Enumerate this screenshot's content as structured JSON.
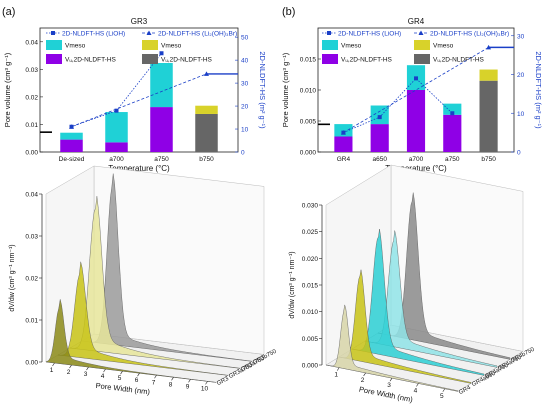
{
  "panel_labels": [
    "(a)",
    "(b)"
  ],
  "chart_data": [
    {
      "type": "bar",
      "title": "GR3",
      "xlabel": "Temperature (°C)",
      "ylabel": "Pore volume (cm³ g⁻¹)",
      "y2label": "2D-NLDFT-HS (m² g⁻¹)",
      "categories": [
        "De-sized",
        "a700",
        "a750",
        "b750"
      ],
      "ylim": [
        0,
        0.045
      ],
      "yticks": [
        "0.00",
        "0.01",
        "0.02",
        "0.03",
        "0.04"
      ],
      "y2lim": [
        0,
        54
      ],
      "y2ticks": [
        "0",
        "10",
        "20",
        "30",
        "40",
        "50"
      ],
      "series": [
        {
          "name": "Vᵤ,2D-NLDFT-HS",
          "kind": "stack-base",
          "color": "#8f00e6",
          "values": [
            0.0045,
            0.0035,
            0.0163,
            null
          ]
        },
        {
          "name": "Vmeso",
          "kind": "stack-top",
          "color": "#1fd1d6",
          "values": [
            0.0025,
            0.011,
            0.016,
            null
          ]
        },
        {
          "name": "Vᵤ,2D-NLDFT-HS",
          "kind": "stack-base",
          "color": "#666666",
          "values": [
            null,
            null,
            null,
            0.0138
          ]
        },
        {
          "name": "Vmeso",
          "kind": "stack-top",
          "color": "#d8d22a",
          "values": [
            null,
            null,
            null,
            0.003
          ]
        }
      ],
      "lines": [
        {
          "name": "2D-NLDFT-HS (LiOH)",
          "style": "dotted-square",
          "color": "#1a3fc7",
          "values": [
            11,
            18,
            43,
            null
          ]
        },
        {
          "name": "2D-NLDFT-HS (Li₂(OH)₃Br)",
          "style": "dashed-triangle",
          "color": "#1a3fc7",
          "values": [
            11,
            null,
            null,
            34
          ]
        }
      ],
      "legend": {
        "vmeso_cyan": "Vmeso",
        "vmeso_yellow": "Vmeso",
        "vu_purple": "Vᵤ,2D-NLDFT-HS",
        "vu_grey": "Vᵤ,2D-NLDFT-HS"
      },
      "legend_lines": [
        "2D-NLDFT-HS (LiOH)",
        "2D-NLDFT-HS (Li₂(OH)₃Br)"
      ]
    },
    {
      "type": "bar",
      "title": "GR4",
      "xlabel": "Temperature (°C)",
      "ylabel": "Pore volume (cm³ g⁻¹)",
      "y2label": "2D-NLDFT-HS (m² g⁻¹)",
      "categories": [
        "GR4",
        "a650",
        "a700",
        "a750",
        "b750"
      ],
      "ylim": [
        0,
        0.02
      ],
      "yticks": [
        "0.000",
        "0.005",
        "0.010",
        "0.015"
      ],
      "y2lim": [
        0,
        32
      ],
      "y2ticks": [
        "0",
        "10",
        "20",
        "30"
      ],
      "series": [
        {
          "name": "Vᵤ,2D-NLDFT-HS",
          "kind": "stack-base",
          "color": "#8f00e6",
          "values": [
            0.0025,
            0.0045,
            0.01,
            0.006,
            null
          ]
        },
        {
          "name": "Vmeso",
          "kind": "stack-top",
          "color": "#1fd1d6",
          "values": [
            0.002,
            0.003,
            0.004,
            0.0018,
            null
          ]
        },
        {
          "name": "Vᵤ,2D-NLDFT-HS",
          "kind": "stack-base",
          "color": "#666666",
          "values": [
            null,
            null,
            null,
            null,
            0.0115
          ]
        },
        {
          "name": "Vmeso",
          "kind": "stack-top",
          "color": "#d8d22a",
          "values": [
            null,
            null,
            null,
            null,
            0.0018
          ]
        }
      ],
      "lines": [
        {
          "name": "2D-NLDFT-HS (LiOH)",
          "style": "dotted-square",
          "color": "#1a3fc7",
          "values": [
            5,
            9,
            19,
            10,
            null
          ]
        },
        {
          "name": "2D-NLDFT-HS (Li₂(OH)₃Br)",
          "style": "dashed-triangle",
          "color": "#1a3fc7",
          "values": [
            5,
            null,
            null,
            null,
            27
          ]
        }
      ],
      "legend": {
        "vmeso_cyan": "Vmeso",
        "vmeso_yellow": "Vmeso",
        "vu_purple": "Vᵤ,2D-NLDFT-HS",
        "vu_grey": "Vᵤ,2D-NLDFT-HS"
      },
      "legend_lines": [
        "2D-NLDFT-HS (LiOH)",
        "2D-NLDFT-HS (Li₂(OH)₃Br)"
      ]
    },
    {
      "type": "area",
      "view": "3d-waterfall",
      "xlabel": "Pore Width (nm)",
      "ylabel": "dV/dw (cm³ g⁻¹ nm⁻¹)",
      "xticks": [
        "1",
        "2",
        "3",
        "4",
        "5",
        "6",
        "7",
        "8",
        "9",
        "10"
      ],
      "zlim": [
        0,
        0.04
      ],
      "zticks": [
        "0.00",
        "0.01",
        "0.02",
        "0.03",
        "0.04"
      ],
      "series": [
        {
          "name": "GR3",
          "color": "#8b8a17",
          "peak_x": 1.3,
          "peak": 0.0135,
          "width": 0.35,
          "tail": 0.002
        },
        {
          "name": "GR3a700",
          "color": "#c8c315",
          "peak_x": 1.8,
          "peak": 0.02,
          "width": 0.45,
          "tail": 0.003
        },
        {
          "name": "GR3a750",
          "color": "#e6e59a",
          "peak_x": 2.0,
          "peak": 0.034,
          "width": 0.5,
          "tail": 0.004
        },
        {
          "name": "GR3b750",
          "color": "#9a9a9a",
          "peak_x": 2.3,
          "peak": 0.038,
          "width": 0.45,
          "tail": 0.003
        }
      ]
    },
    {
      "type": "area",
      "view": "3d-waterfall",
      "xlabel": "Pore Width (nm)",
      "ylabel": "dV/dw (cm³ g⁻¹ nm⁻¹)",
      "xticks": [
        "1",
        "2",
        "3",
        "4",
        "5"
      ],
      "zlim": [
        0,
        0.03
      ],
      "zticks": [
        "0.000",
        "0.005",
        "0.010",
        "0.015",
        "0.020",
        "0.025",
        "0.030"
      ],
      "series": [
        {
          "name": "GR4",
          "color": "#d7d5a8",
          "peak_x": 1.2,
          "peak": 0.011,
          "width": 0.2,
          "tail": 0.001
        },
        {
          "name": "GR4a650",
          "color": "#c8c315",
          "peak_x": 1.3,
          "peak": 0.016,
          "width": 0.25,
          "tail": 0.0015
        },
        {
          "name": "GR4a700",
          "color": "#2ccfd4",
          "peak_x": 1.5,
          "peak": 0.022,
          "width": 0.3,
          "tail": 0.002
        },
        {
          "name": "GR4a750",
          "color": "#8fe3e6",
          "peak_x": 1.6,
          "peak": 0.02,
          "width": 0.3,
          "tail": 0.002
        },
        {
          "name": "GR4b750",
          "color": "#8a8a8a",
          "peak_x": 1.8,
          "peak": 0.026,
          "width": 0.3,
          "tail": 0.002
        }
      ]
    }
  ]
}
